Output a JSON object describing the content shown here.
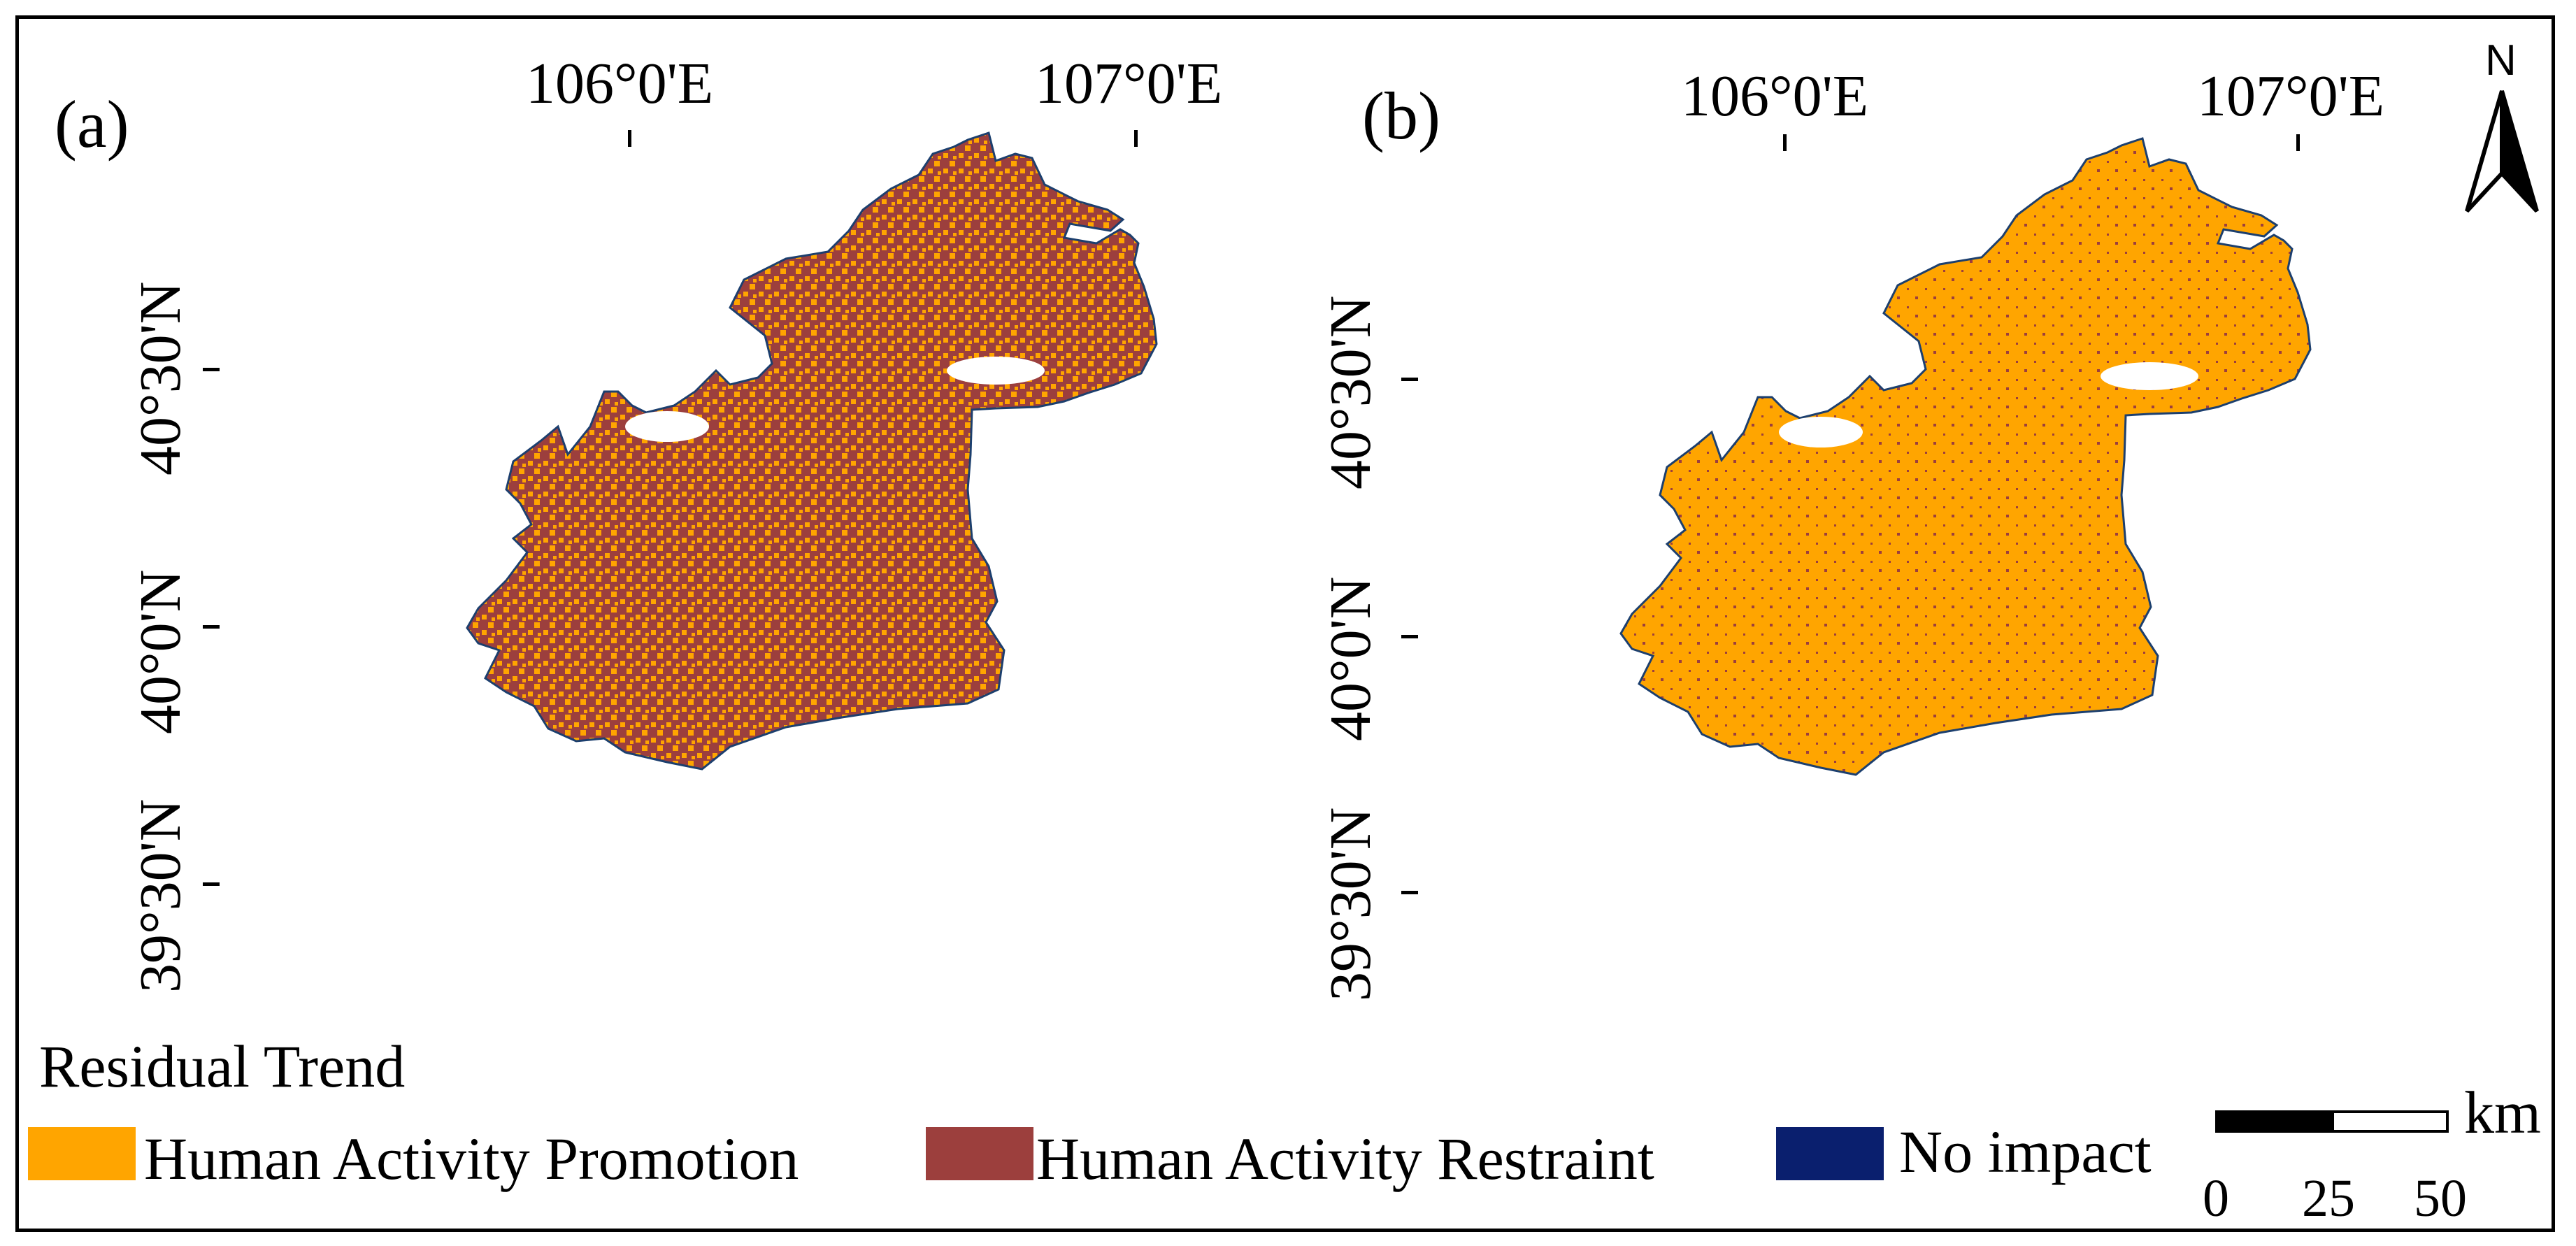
{
  "panels": [
    {
      "id": "a",
      "label": "(a)",
      "lon_labels": [
        "106°0'E",
        "107°0'E"
      ],
      "lat_labels": [
        "40°30'N",
        "40°0'N",
        "39°30'N"
      ],
      "dominant": "restraint"
    },
    {
      "id": "b",
      "label": "(b)",
      "lon_labels": [
        "106°0'E",
        "107°0'E"
      ],
      "lat_labels": [
        "40°30'N",
        "40°0'N",
        "39°30'N"
      ],
      "dominant": "promotion"
    }
  ],
  "north_arrow": {
    "label": "N"
  },
  "legend": {
    "title": "Residual Trend",
    "items": [
      {
        "label": "Human Activity Promotion",
        "color": "#FFA500"
      },
      {
        "label": "Human Activity Restraint",
        "color": "#9C3F3D"
      },
      {
        "label": "No impact",
        "color": "#0A1F6E"
      }
    ]
  },
  "scale_bar": {
    "unit": "km",
    "ticks": [
      "0",
      "25",
      "50"
    ]
  }
}
